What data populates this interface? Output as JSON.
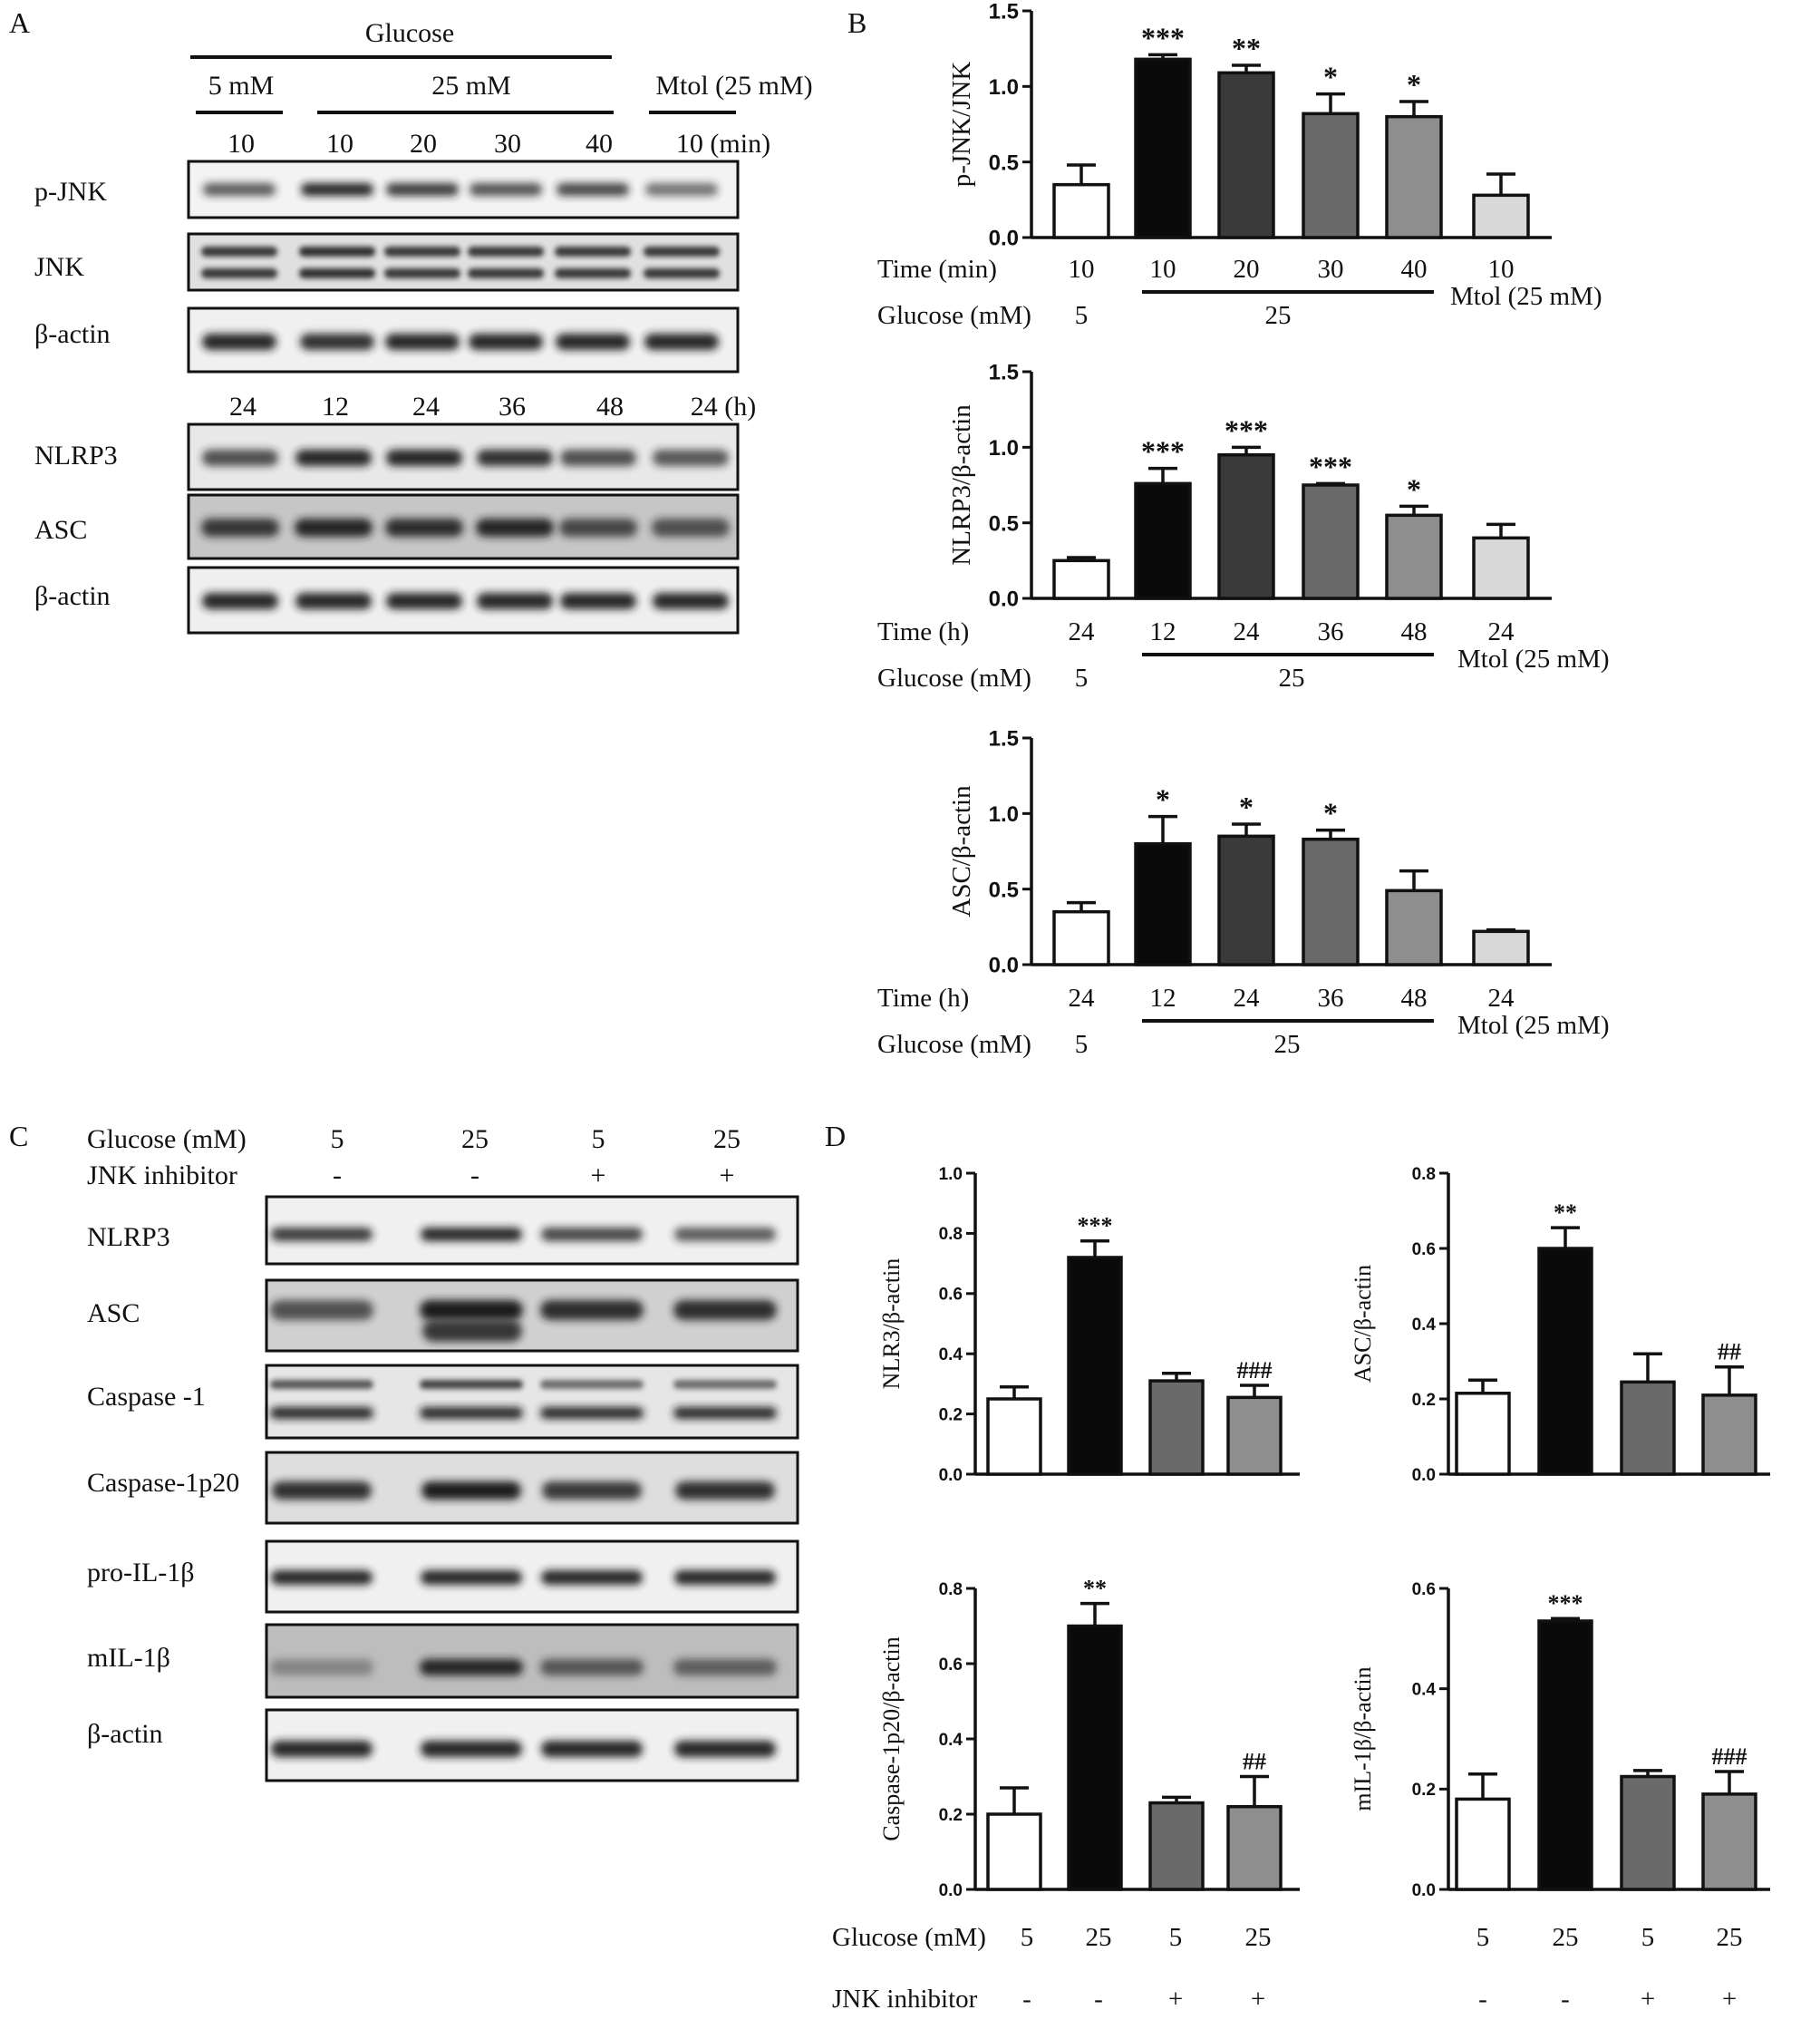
{
  "panels": {
    "A": "A",
    "B": "B",
    "C": "C",
    "D": "D"
  },
  "panelA": {
    "glucose_label": "Glucose",
    "low_label": "5 mM",
    "high_label": "25 mM",
    "mtol_label": "Mtol (25 mM)",
    "time_min": [
      "10",
      "10",
      "20",
      "30",
      "40",
      "10 (min)"
    ],
    "time_h": [
      "24",
      "12",
      "24",
      "36",
      "48",
      "24 (h)"
    ],
    "blots_top": [
      "p-JNK",
      "JNK",
      "β-actin"
    ],
    "blots_bottom": [
      "NLRP3",
      "ASC",
      "β-actin"
    ]
  },
  "panelC": {
    "glucose_label": "Glucose (mM)",
    "inhibitor_label": "JNK inhibitor",
    "glucose_values": [
      "5",
      "25",
      "5",
      "25"
    ],
    "inhibitor_values": [
      "-",
      "-",
      "+",
      "+"
    ],
    "blots": [
      "NLRP3",
      "ASC",
      "Caspase -1",
      "Caspase-1p20",
      "pro-IL-1β",
      "mIL-1β",
      "β-actin"
    ]
  },
  "panelD_xlabels": {
    "glucose_label": "Glucose (mM)",
    "inhibitor_label": "JNK inhibitor",
    "glucose_values": [
      "5",
      "25",
      "5",
      "25"
    ],
    "inhibitor_values": [
      "-",
      "-",
      "+",
      "+"
    ]
  },
  "colors": {
    "white": "#ffffff",
    "black": "#0a0a0a",
    "dark": "#3a3a3a",
    "mid": "#6a6a6a",
    "light": "#8e8e8e",
    "pale": "#d8d8d8"
  },
  "chart_data": [
    {
      "id": "B1",
      "type": "bar",
      "ylabel": "p-JNK/JNK",
      "ylim": [
        0,
        1.5
      ],
      "yticks": [
        "0.0",
        "0.5",
        "1.0",
        "1.5"
      ],
      "values": [
        0.35,
        1.18,
        1.09,
        0.82,
        0.8,
        0.28
      ],
      "errors": [
        0.13,
        0.03,
        0.05,
        0.13,
        0.1,
        0.14
      ],
      "sig": [
        "",
        "***",
        "**",
        "*",
        "*",
        ""
      ],
      "time_label": "Time (min)",
      "time_values": [
        "10",
        "10",
        "20",
        "30",
        "40",
        "10"
      ],
      "glucose_label": "Glucose (mM)",
      "glucose_low": "5",
      "glucose_high": "25",
      "mtol": "Mtol (25 mM)"
    },
    {
      "id": "B2",
      "type": "bar",
      "ylabel": "NLRP3/β-actin",
      "ylim": [
        0,
        1.5
      ],
      "yticks": [
        "0.0",
        "0.5",
        "1.0",
        "1.5"
      ],
      "values": [
        0.25,
        0.76,
        0.95,
        0.75,
        0.55,
        0.4
      ],
      "errors": [
        0.02,
        0.1,
        0.05,
        0.01,
        0.06,
        0.09
      ],
      "sig": [
        "",
        "***",
        "***",
        "***",
        "*",
        ""
      ],
      "time_label": "Time (h)",
      "time_values": [
        "24",
        "12",
        "24",
        "36",
        "48",
        "24"
      ],
      "glucose_label": "Glucose (mM)",
      "glucose_low": "5",
      "glucose_high": "25",
      "mtol": "Mtol (25 mM)"
    },
    {
      "id": "B3",
      "type": "bar",
      "ylabel": "ASC/β-actin",
      "ylim": [
        0,
        1.5
      ],
      "yticks": [
        "0.0",
        "0.5",
        "1.0",
        "1.5"
      ],
      "values": [
        0.35,
        0.8,
        0.85,
        0.83,
        0.49,
        0.22
      ],
      "errors": [
        0.06,
        0.18,
        0.08,
        0.06,
        0.13,
        0.01
      ],
      "sig": [
        "",
        "*",
        "*",
        "*",
        "",
        ""
      ],
      "time_label": "Time (h)",
      "time_values": [
        "24",
        "12",
        "24",
        "36",
        "48",
        "24"
      ],
      "glucose_label": "Glucose (mM)",
      "glucose_low": "5",
      "glucose_high": "25",
      "mtol": "Mtol (25 mM)"
    },
    {
      "id": "D1",
      "type": "bar",
      "ylabel": "NLR3/β-actin",
      "ylim": [
        0,
        1.0
      ],
      "yticks": [
        "0.0",
        "0.2",
        "0.4",
        "0.6",
        "0.8",
        "1.0"
      ],
      "values": [
        0.25,
        0.72,
        0.31,
        0.255
      ],
      "errors": [
        0.04,
        0.055,
        0.025,
        0.04
      ],
      "sig": [
        "",
        "***",
        "",
        "###"
      ]
    },
    {
      "id": "D2",
      "type": "bar",
      "ylabel": "ASC/β-actin",
      "ylim": [
        0,
        0.8
      ],
      "yticks": [
        "0.0",
        "0.2",
        "0.4",
        "0.6",
        "0.8"
      ],
      "values": [
        0.215,
        0.6,
        0.245,
        0.21
      ],
      "errors": [
        0.035,
        0.055,
        0.075,
        0.075
      ],
      "sig": [
        "",
        "**",
        "",
        "##"
      ]
    },
    {
      "id": "D3",
      "type": "bar",
      "ylabel": "Caspase-1p20/β-actin",
      "ylim": [
        0,
        0.8
      ],
      "yticks": [
        "0.0",
        "0.2",
        "0.4",
        "0.6",
        "0.8"
      ],
      "values": [
        0.2,
        0.7,
        0.23,
        0.22
      ],
      "errors": [
        0.07,
        0.06,
        0.015,
        0.08
      ],
      "sig": [
        "",
        "**",
        "",
        "##"
      ]
    },
    {
      "id": "D4",
      "type": "bar",
      "ylabel": "mIL-1β/β-actin",
      "ylim": [
        0,
        0.6
      ],
      "yticks": [
        "0.0",
        "0.2",
        "0.4",
        "0.6"
      ],
      "values": [
        0.18,
        0.535,
        0.225,
        0.19
      ],
      "errors": [
        0.05,
        0.005,
        0.012,
        0.045
      ],
      "sig": [
        "",
        "***",
        "",
        "###"
      ]
    }
  ]
}
